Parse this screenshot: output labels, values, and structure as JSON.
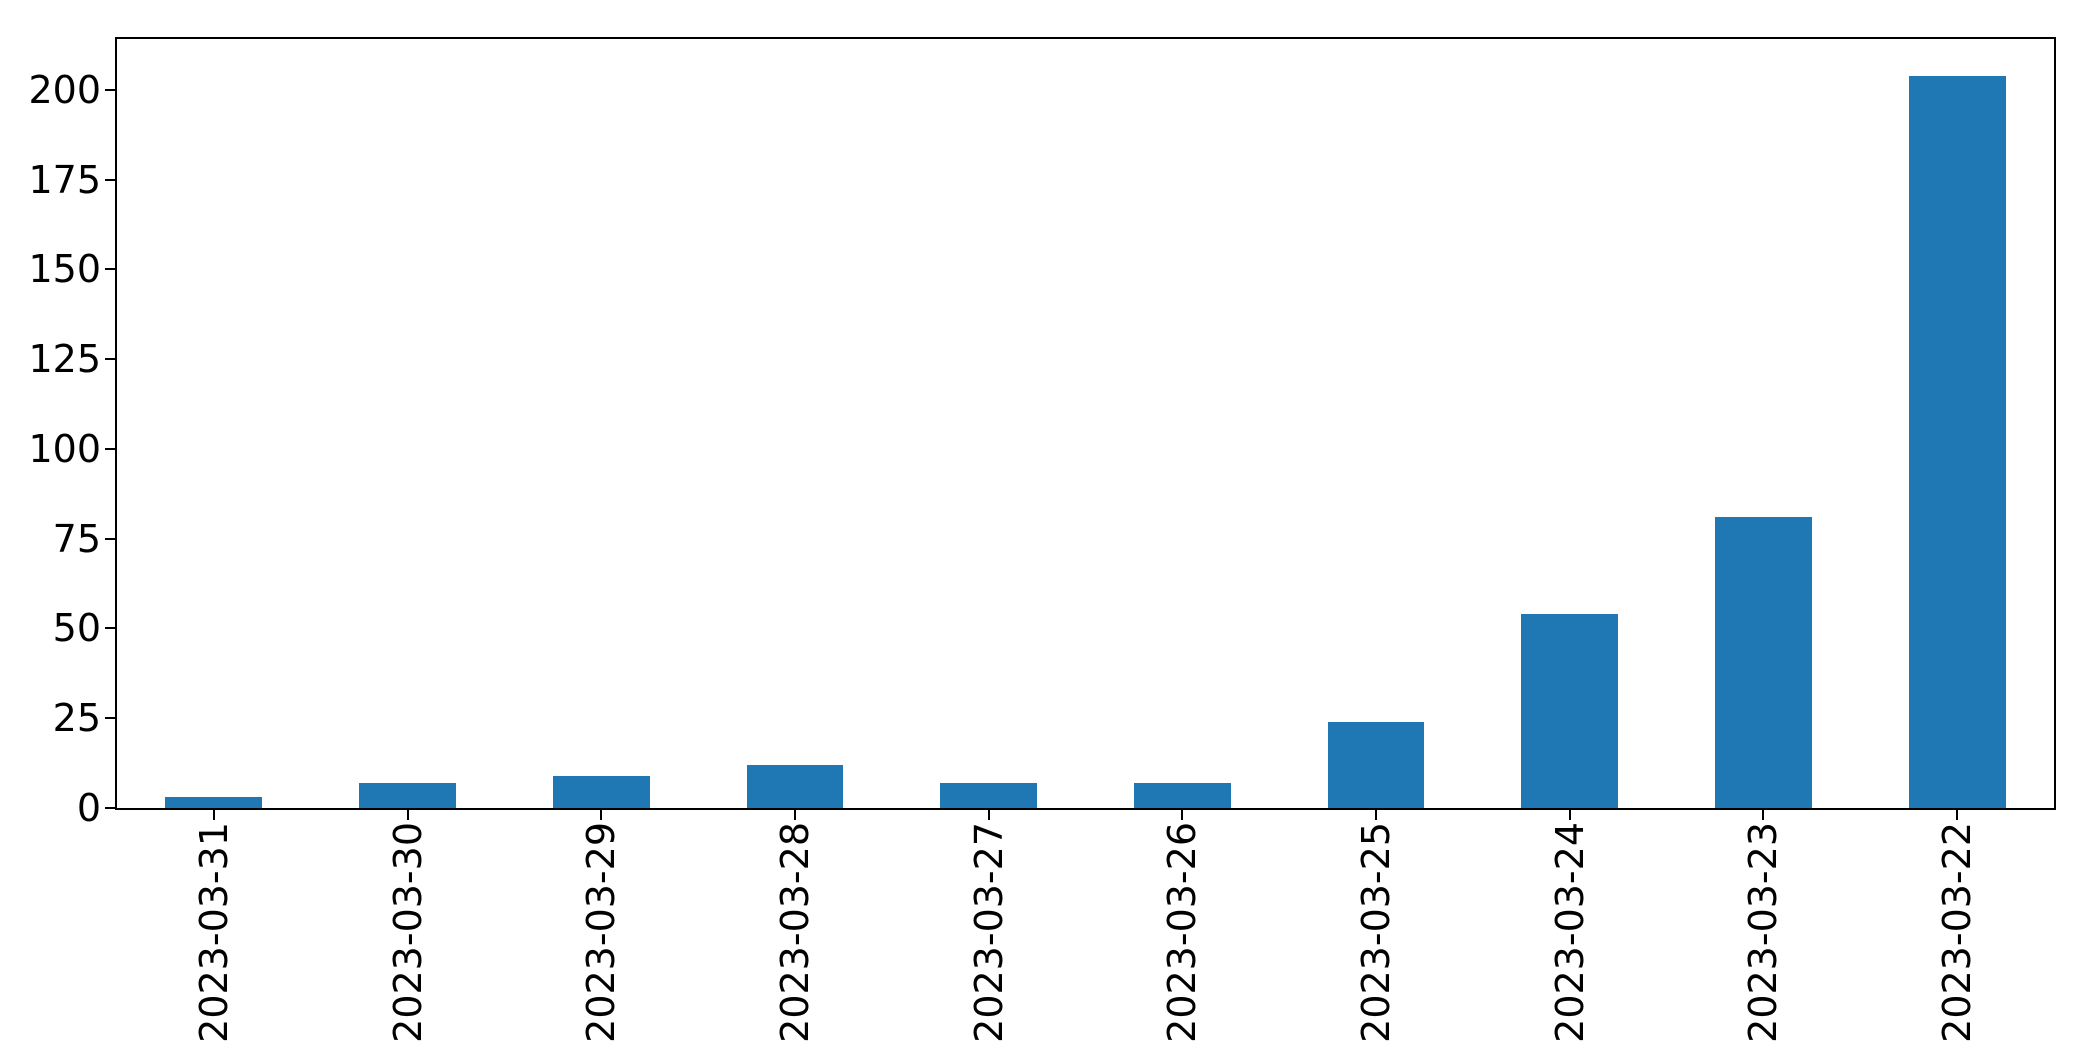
{
  "figure": {
    "background": "#ffffff",
    "plot_background": "#ffffff",
    "spine_color": "#000000",
    "tick_color": "#000000",
    "label_color": "#000000"
  },
  "chart_data": {
    "type": "bar",
    "title": "",
    "xlabel": "",
    "ylabel": "",
    "categories": [
      "2023-03-31",
      "2023-03-30",
      "2023-03-29",
      "2023-03-28",
      "2023-03-27",
      "2023-03-26",
      "2023-03-25",
      "2023-03-24",
      "2023-03-23",
      "2023-03-22"
    ],
    "values": [
      3,
      7,
      9,
      12,
      7,
      7,
      24,
      54,
      81,
      204
    ],
    "yticks": [
      0,
      25,
      50,
      75,
      100,
      125,
      150,
      175,
      200
    ],
    "ylim": [
      0,
      214.2
    ],
    "xtick_rotation": 90,
    "bar_color": "#1f77b4",
    "bar_width_fraction": 0.5,
    "grid": false,
    "legend": null
  }
}
